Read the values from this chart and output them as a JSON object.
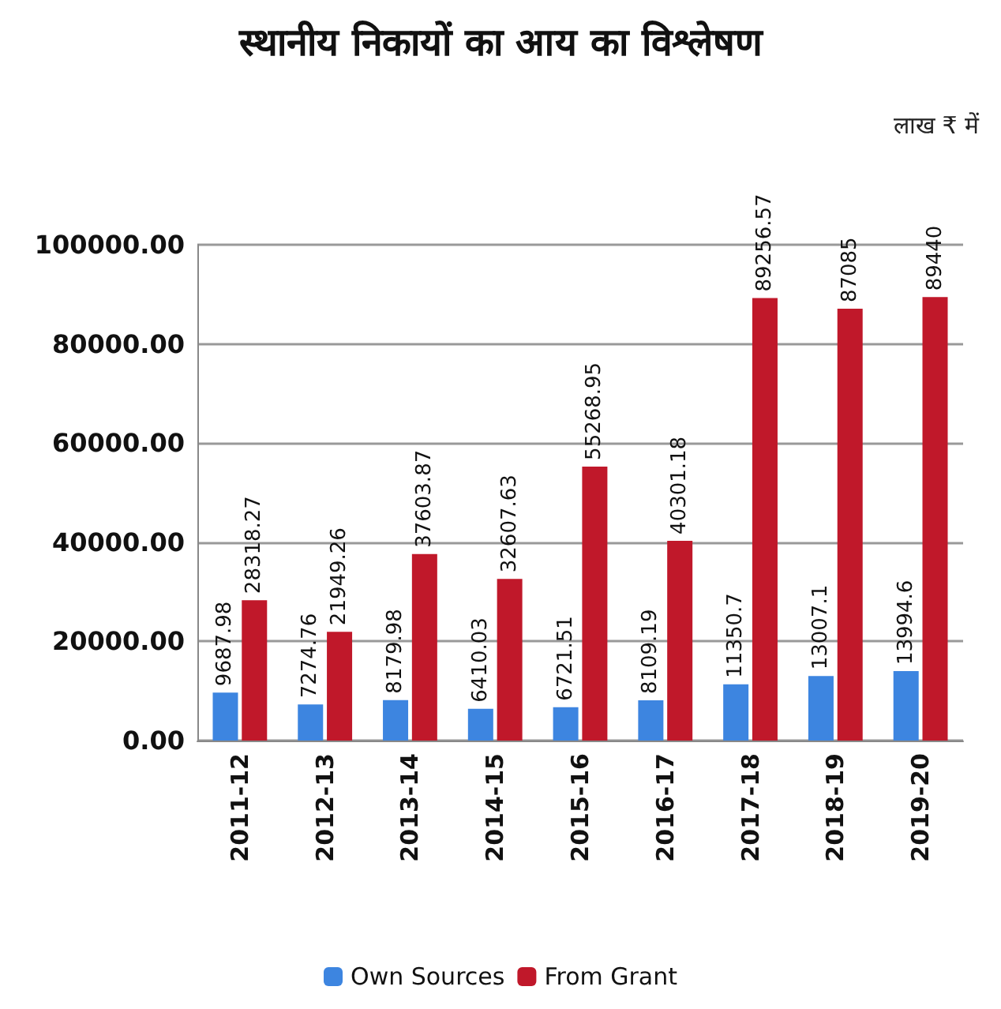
{
  "chart_data": {
    "type": "bar",
    "title": "स्थानीय निकायों का आय का विश्लेषण",
    "annotations": [
      "लाख ₹ में"
    ],
    "categories": [
      "2011-12",
      "2012-13",
      "2013-14",
      "2014-15",
      "2015-16",
      "2016-17",
      "2017-18",
      "2018-19",
      "2019-20"
    ],
    "series": [
      {
        "name": "Own Sources",
        "color": "#3d85e0",
        "values": [
          9687.98,
          7274.76,
          8179.98,
          6410.03,
          6721.51,
          8109.19,
          11350.7,
          13007.1,
          13994.6
        ]
      },
      {
        "name": "From Grant",
        "color": "#c0182a",
        "values": [
          28318.27,
          21949.26,
          37603.87,
          32607.63,
          55268.95,
          40301.18,
          89256.57,
          87085,
          89440
        ]
      }
    ],
    "ylim": [
      0,
      100000
    ],
    "yticks": [
      {
        "value": 0,
        "label": "0.00"
      },
      {
        "value": 20000,
        "label": "20000.00"
      },
      {
        "value": 40000,
        "label": "40000.00"
      },
      {
        "value": 60000,
        "label": "60000.00"
      },
      {
        "value": 80000,
        "label": "80000.00"
      },
      {
        "value": 100000,
        "label": "100000.00"
      }
    ],
    "grid": "y",
    "legend": "bottom",
    "data_labels": true
  }
}
